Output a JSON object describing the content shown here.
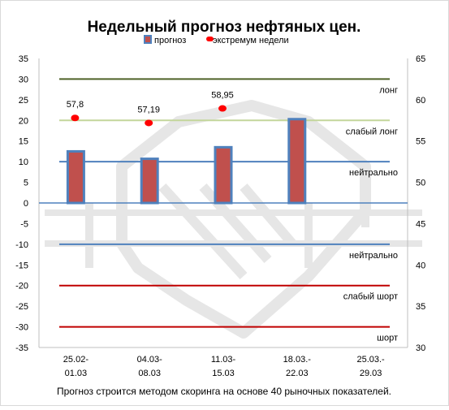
{
  "chart_data": {
    "type": "bar",
    "title": "Недельный прогноз нефтяных цен.",
    "footnote": "Прогноз строится методом скоринга на основе 40 рыночных показателей.",
    "categories": [
      [
        "25.02-",
        "01.03"
      ],
      [
        "04.03-",
        "08.03"
      ],
      [
        "11.03-",
        "15.03"
      ],
      [
        "18.03.-",
        "22.03"
      ],
      [
        "25.03.-",
        "29.03"
      ]
    ],
    "legend": {
      "placement": "top",
      "bar_label": "прогноз",
      "point_label": "экстремум недели"
    },
    "series": [
      {
        "name": "прогноз",
        "axis": "left",
        "type": "bar",
        "values": [
          12.5,
          10.7,
          13.5,
          20.3,
          null
        ]
      },
      {
        "name": "экстремум недели",
        "axis": "right",
        "type": "scatter",
        "values": [
          57.8,
          57.19,
          58.95,
          null,
          null
        ],
        "labels": [
          "57,8",
          "57,19",
          "58,95",
          "",
          ""
        ]
      }
    ],
    "y_left": {
      "min": -35,
      "max": 35,
      "step": 5,
      "ticks": [
        "35",
        "30",
        "25",
        "20",
        "15",
        "10",
        "5",
        "0",
        "-5",
        "-10",
        "-15",
        "-20",
        "-25",
        "-30",
        "-35"
      ]
    },
    "y_right": {
      "min": 30,
      "max": 65,
      "step": 5,
      "ticks": [
        "65",
        "60",
        "55",
        "50",
        "45",
        "40",
        "35",
        "30"
      ]
    },
    "reference_lines": [
      {
        "y": 30,
        "label": "лонг",
        "color": "#4f6228"
      },
      {
        "y": 20,
        "label": "слабый лонг",
        "color": "#c3d69b"
      },
      {
        "y": 10,
        "label": "нейтрально",
        "color": "#4f81bd"
      },
      {
        "y": -10,
        "label": "нейтрально",
        "color": "#4f81bd"
      },
      {
        "y": -20,
        "label": "слабый шорт",
        "color": "#c00000"
      },
      {
        "y": -30,
        "label": "шорт",
        "color": "#c00000"
      }
    ],
    "colors": {
      "bar_fill": "#c0504d",
      "bar_border": "#4f81bd",
      "point": "#ff0000",
      "zero_line": "#4f81bd"
    },
    "grid": false
  }
}
